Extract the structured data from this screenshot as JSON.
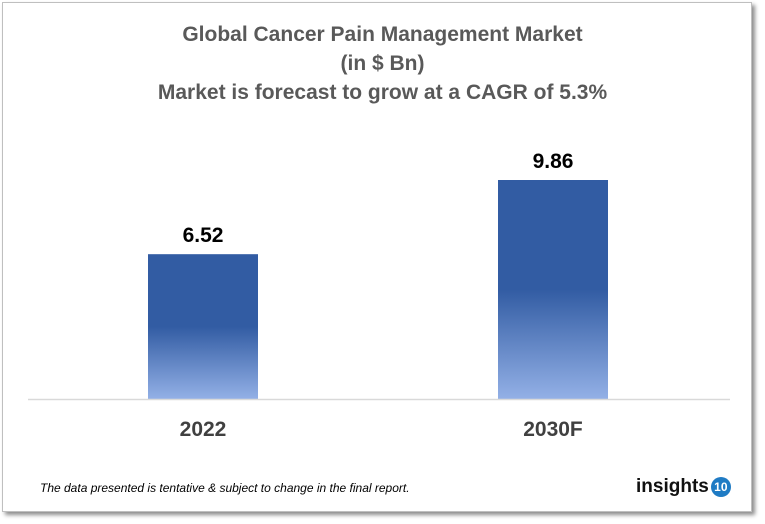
{
  "chart_data": {
    "type": "bar",
    "title": [
      "Global Cancer Pain Management Market",
      "(in $ Bn)",
      "Market is forecast to grow at a CAGR of 5.3%"
    ],
    "categories": [
      "2022",
      "2030F"
    ],
    "values": [
      6.52,
      9.86
    ],
    "data_labels": [
      "6.52",
      "9.86"
    ],
    "xlabel": "",
    "ylabel": "",
    "ylim": [
      0,
      10.5
    ],
    "grid": false,
    "legend": "none",
    "colors": {
      "bar_top": "#325ca3",
      "bar_bottom": "#93b0e6",
      "title": "#595959"
    }
  },
  "footnote": "The data presented is tentative & subject to change in the final report.",
  "logo": {
    "text": "insights",
    "badge": "10"
  }
}
